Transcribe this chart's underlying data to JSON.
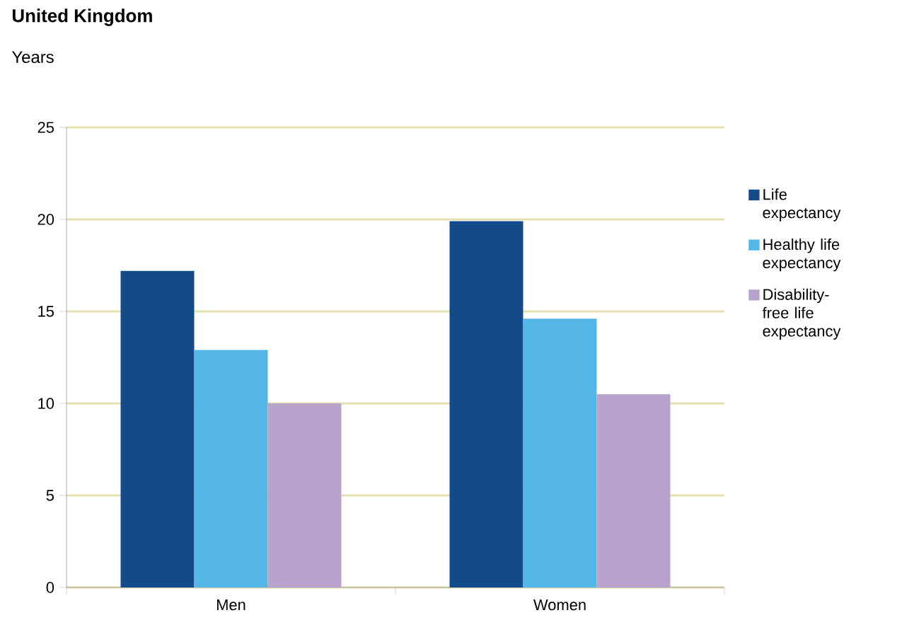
{
  "chart_data": {
    "type": "bar",
    "title": "United Kingdom",
    "ylabel": "Years",
    "categories": [
      "Men",
      "Women"
    ],
    "series": [
      {
        "name": "Life expectancy",
        "color": "#134a8a",
        "values": [
          17.2,
          19.9
        ]
      },
      {
        "name": "Healthy life expectancy",
        "color": "#55b6e8",
        "values": [
          12.9,
          14.6
        ]
      },
      {
        "name": "Disability-free life expectancy",
        "color": "#b8a3cd",
        "values": [
          10.0,
          10.5
        ]
      }
    ],
    "ylim": [
      0,
      25
    ],
    "yticks": [
      0,
      5,
      10,
      15,
      20,
      25
    ],
    "grid": "y",
    "legend": "right"
  }
}
